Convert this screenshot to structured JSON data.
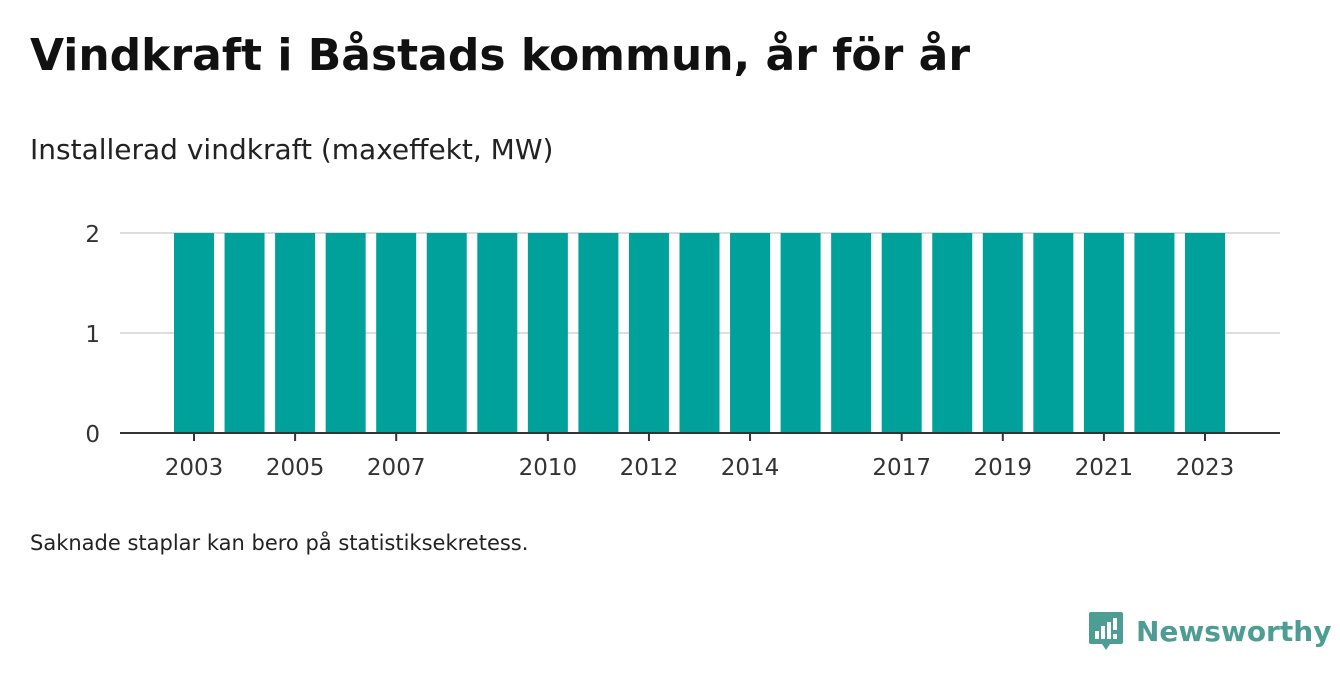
{
  "title": "Vindkraft i Båstads kommun, år för år",
  "subtitle": "Installerad vindkraft (maxeffekt, MW)",
  "footnote": "Saknade staplar kan bero på statistiksekretess.",
  "brand": {
    "name": "Newsworthy",
    "icon": "newsworthy-logo-icon"
  },
  "colors": {
    "bar": "#00a19a",
    "grid": "#dddddd",
    "axis": "#333333",
    "brand": "#4d9d94"
  },
  "chart_data": {
    "type": "bar",
    "categories": [
      "2003",
      "2004",
      "2005",
      "2006",
      "2007",
      "2008",
      "2009",
      "2010",
      "2011",
      "2012",
      "2013",
      "2014",
      "2015",
      "2016",
      "2017",
      "2018",
      "2019",
      "2020",
      "2021",
      "2022",
      "2023"
    ],
    "values": [
      2,
      2,
      2,
      2,
      2,
      2,
      2,
      2,
      2,
      2,
      2,
      2,
      2,
      2,
      2,
      2,
      2,
      2,
      2,
      2,
      2
    ],
    "x_tick_labels": [
      "2003",
      "2005",
      "2007",
      "2010",
      "2012",
      "2014",
      "2017",
      "2019",
      "2021",
      "2023"
    ],
    "y_ticks": [
      0,
      1,
      2
    ],
    "ylim": [
      0,
      2
    ],
    "xlabel": "",
    "ylabel": "",
    "grid": true,
    "legend": "none"
  }
}
